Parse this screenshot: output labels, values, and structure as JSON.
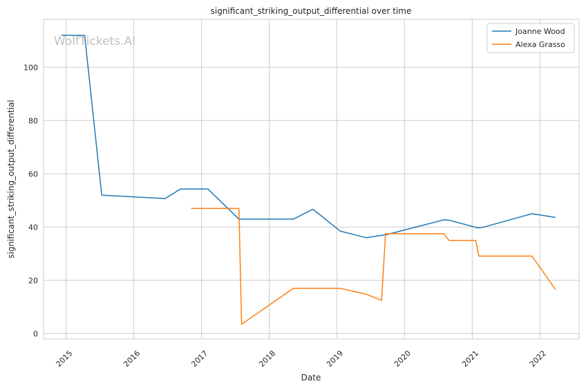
{
  "watermark": "WolfTickets.AI",
  "chart_data": {
    "type": "line",
    "title": "significant_striking_output_differential over time",
    "xlabel": "Date",
    "ylabel": "significant_striking_output_differential",
    "xlim": [
      "2014-09-01",
      "2022-08-01"
    ],
    "ylim": [
      -2,
      118
    ],
    "x_ticks": [
      "2015-01-01",
      "2016-01-01",
      "2017-01-01",
      "2018-01-01",
      "2019-01-01",
      "2020-01-01",
      "2021-01-01",
      "2022-01-01"
    ],
    "x_tick_labels": [
      "2015",
      "2016",
      "2017",
      "2018",
      "2019",
      "2020",
      "2021",
      "2022"
    ],
    "y_ticks": [
      0,
      20,
      40,
      60,
      80,
      100
    ],
    "y_tick_labels": [
      "0",
      "20",
      "40",
      "60",
      "80",
      "100"
    ],
    "grid": true,
    "legend_position": "top-right",
    "series": [
      {
        "name": "Joanne Wood",
        "color": "#1f77b4",
        "points": [
          {
            "x": "2014-12-06",
            "y": 112.0
          },
          {
            "x": "2015-04-11",
            "y": 112.0
          },
          {
            "x": "2015-07-12",
            "y": 52.0
          },
          {
            "x": "2016-06-18",
            "y": 50.7
          },
          {
            "x": "2016-09-10",
            "y": 54.3
          },
          {
            "x": "2017-02-04",
            "y": 54.3
          },
          {
            "x": "2017-07-22",
            "y": 43.0
          },
          {
            "x": "2018-05-12",
            "y": 43.0
          },
          {
            "x": "2018-08-25",
            "y": 46.7
          },
          {
            "x": "2019-01-19",
            "y": 38.5
          },
          {
            "x": "2019-06-08",
            "y": 36.0
          },
          {
            "x": "2019-09-28",
            "y": 37.2
          },
          {
            "x": "2020-08-01",
            "y": 42.7
          },
          {
            "x": "2020-08-29",
            "y": 42.6
          },
          {
            "x": "2021-02-01",
            "y": 39.7
          },
          {
            "x": "2021-02-27",
            "y": 39.9
          },
          {
            "x": "2021-11-20",
            "y": 45.0
          },
          {
            "x": "2022-03-26",
            "y": 43.6
          }
        ]
      },
      {
        "name": "Alexa Grasso",
        "color": "#ff7f0e",
        "points": [
          {
            "x": "2016-11-05",
            "y": 47.0
          },
          {
            "x": "2017-07-22",
            "y": 47.0
          },
          {
            "x": "2017-08-05",
            "y": 3.5
          },
          {
            "x": "2018-05-12",
            "y": 17.0
          },
          {
            "x": "2019-01-19",
            "y": 17.0
          },
          {
            "x": "2019-06-08",
            "y": 14.8
          },
          {
            "x": "2019-08-31",
            "y": 12.5
          },
          {
            "x": "2019-09-21",
            "y": 37.5
          },
          {
            "x": "2020-08-01",
            "y": 37.5
          },
          {
            "x": "2020-08-29",
            "y": 35.0
          },
          {
            "x": "2021-01-20",
            "y": 35.0
          },
          {
            "x": "2021-02-06",
            "y": 29.1
          },
          {
            "x": "2021-11-20",
            "y": 29.1
          },
          {
            "x": "2022-03-26",
            "y": 16.6
          }
        ]
      }
    ]
  }
}
